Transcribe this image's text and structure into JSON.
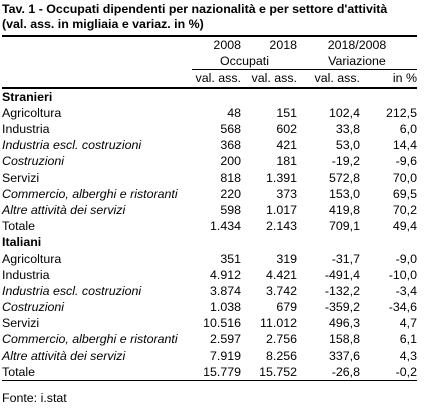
{
  "title": {
    "line1": "Tav. 1 - Occupati dipendenti per nazionalità e per settore d'attività",
    "line2": "(val. ass. in migliaia e variaz. in %)"
  },
  "header": {
    "year1": "2008",
    "year2": "2018",
    "period": "2018/2008",
    "group1": "Occupati",
    "group2": "Variazione",
    "unit1": "val. ass.",
    "unit2": "val. ass.",
    "unit3": "val. ass.",
    "unit4": "in %"
  },
  "sections": [
    {
      "name": "Stranieri",
      "rows": [
        {
          "label": "Agricoltura",
          "italic": false,
          "v2008": "48",
          "v2018": "151",
          "var_abs": "102,4",
          "var_pct": "212,5"
        },
        {
          "label": "Industria",
          "italic": false,
          "v2008": "568",
          "v2018": "602",
          "var_abs": "33,8",
          "var_pct": "6,0"
        },
        {
          "label": "Industria escl. costruzioni",
          "italic": true,
          "v2008": "368",
          "v2018": "421",
          "var_abs": "53,0",
          "var_pct": "14,4"
        },
        {
          "label": "Costruzioni",
          "italic": true,
          "v2008": "200",
          "v2018": "181",
          "var_abs": "-19,2",
          "var_pct": "-9,6"
        },
        {
          "label": "Servizi",
          "italic": false,
          "v2008": "818",
          "v2018": "1.391",
          "var_abs": "572,8",
          "var_pct": "70,0"
        },
        {
          "label": "Commercio, alberghi e ristoranti",
          "italic": true,
          "v2008": "220",
          "v2018": "373",
          "var_abs": "153,0",
          "var_pct": "69,5"
        },
        {
          "label": "Altre attività dei servizi",
          "italic": true,
          "v2008": "598",
          "v2018": "1.017",
          "var_abs": "419,8",
          "var_pct": "70,2"
        },
        {
          "label": "Totale",
          "italic": false,
          "v2008": "1.434",
          "v2018": "2.143",
          "var_abs": "709,1",
          "var_pct": "49,4"
        }
      ]
    },
    {
      "name": "Italiani",
      "rows": [
        {
          "label": "Agricoltura",
          "italic": false,
          "v2008": "351",
          "v2018": "319",
          "var_abs": "-31,7",
          "var_pct": "-9,0"
        },
        {
          "label": "Industria",
          "italic": false,
          "v2008": "4.912",
          "v2018": "4.421",
          "var_abs": "-491,4",
          "var_pct": "-10,0"
        },
        {
          "label": "Industria escl. costruzioni",
          "italic": true,
          "v2008": "3.874",
          "v2018": "3.742",
          "var_abs": "-132,2",
          "var_pct": "-3,4"
        },
        {
          "label": "Costruzioni",
          "italic": true,
          "v2008": "1.038",
          "v2018": "679",
          "var_abs": "-359,2",
          "var_pct": "-34,6"
        },
        {
          "label": "Servizi",
          "italic": false,
          "v2008": "10.516",
          "v2018": "11.012",
          "var_abs": "496,3",
          "var_pct": "4,7"
        },
        {
          "label": "Commercio, alberghi e ristoranti",
          "italic": true,
          "v2008": "2.597",
          "v2018": "2.756",
          "var_abs": "158,8",
          "var_pct": "6,1"
        },
        {
          "label": "Altre attività dei servizi",
          "italic": true,
          "v2008": "7.919",
          "v2018": "8.256",
          "var_abs": "337,6",
          "var_pct": "4,3"
        },
        {
          "label": "Totale",
          "italic": false,
          "v2008": "15.779",
          "v2018": "15.752",
          "var_abs": "-26,8",
          "var_pct": "-0,2"
        }
      ]
    }
  ],
  "source": "Fonte: i.stat"
}
